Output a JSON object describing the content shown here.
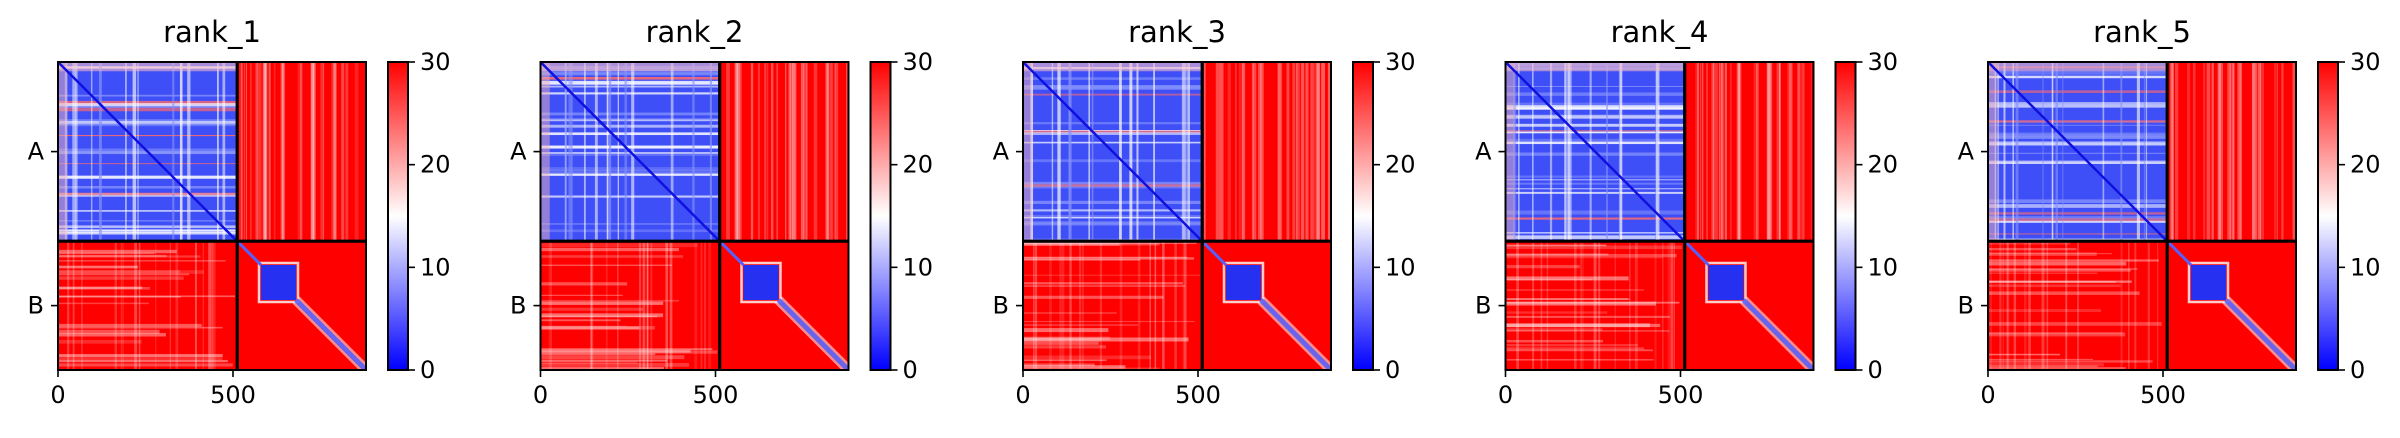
{
  "chart_data": [
    {
      "type": "heatmap",
      "title": "rank_1",
      "xticks": [
        0,
        500
      ],
      "xlim": [
        0,
        880
      ],
      "ylim": [
        0,
        880
      ],
      "chain_boundary": 512,
      "chains": [
        {
          "label": "A",
          "start": 0,
          "end": 512
        },
        {
          "label": "B",
          "start": 512,
          "end": 880
        }
      ],
      "colorbar": {
        "range": [
          0,
          30
        ],
        "ticks": [
          0,
          10,
          20,
          30
        ],
        "colormap": "bwr"
      }
    },
    {
      "type": "heatmap",
      "title": "rank_2",
      "xticks": [
        0,
        500
      ],
      "xlim": [
        0,
        880
      ],
      "ylim": [
        0,
        880
      ],
      "chain_boundary": 512,
      "chains": [
        {
          "label": "A",
          "start": 0,
          "end": 512
        },
        {
          "label": "B",
          "start": 512,
          "end": 880
        }
      ],
      "colorbar": {
        "range": [
          0,
          30
        ],
        "ticks": [
          0,
          10,
          20,
          30
        ],
        "colormap": "bwr"
      }
    },
    {
      "type": "heatmap",
      "title": "rank_3",
      "xticks": [
        0,
        500
      ],
      "xlim": [
        0,
        880
      ],
      "ylim": [
        0,
        880
      ],
      "chain_boundary": 512,
      "chains": [
        {
          "label": "A",
          "start": 0,
          "end": 512
        },
        {
          "label": "B",
          "start": 512,
          "end": 880
        }
      ],
      "colorbar": {
        "range": [
          0,
          30
        ],
        "ticks": [
          0,
          10,
          20,
          30
        ],
        "colormap": "bwr"
      }
    },
    {
      "type": "heatmap",
      "title": "rank_4",
      "xticks": [
        0,
        500
      ],
      "xlim": [
        0,
        880
      ],
      "ylim": [
        0,
        880
      ],
      "chain_boundary": 512,
      "chains": [
        {
          "label": "A",
          "start": 0,
          "end": 512
        },
        {
          "label": "B",
          "start": 512,
          "end": 880
        }
      ],
      "colorbar": {
        "range": [
          0,
          30
        ],
        "ticks": [
          0,
          10,
          20,
          30
        ],
        "colormap": "bwr"
      }
    },
    {
      "type": "heatmap",
      "title": "rank_5",
      "xticks": [
        0,
        500
      ],
      "xlim": [
        0,
        880
      ],
      "ylim": [
        0,
        880
      ],
      "chain_boundary": 512,
      "chains": [
        {
          "label": "A",
          "start": 0,
          "end": 512
        },
        {
          "label": "B",
          "start": 512,
          "end": 880
        }
      ],
      "colorbar": {
        "range": [
          0,
          30
        ],
        "ticks": [
          0,
          10,
          20,
          30
        ],
        "colormap": "bwr"
      }
    }
  ],
  "colors": {
    "low": "#0000ff",
    "mid": "#ffffff",
    "high": "#ff0000"
  }
}
